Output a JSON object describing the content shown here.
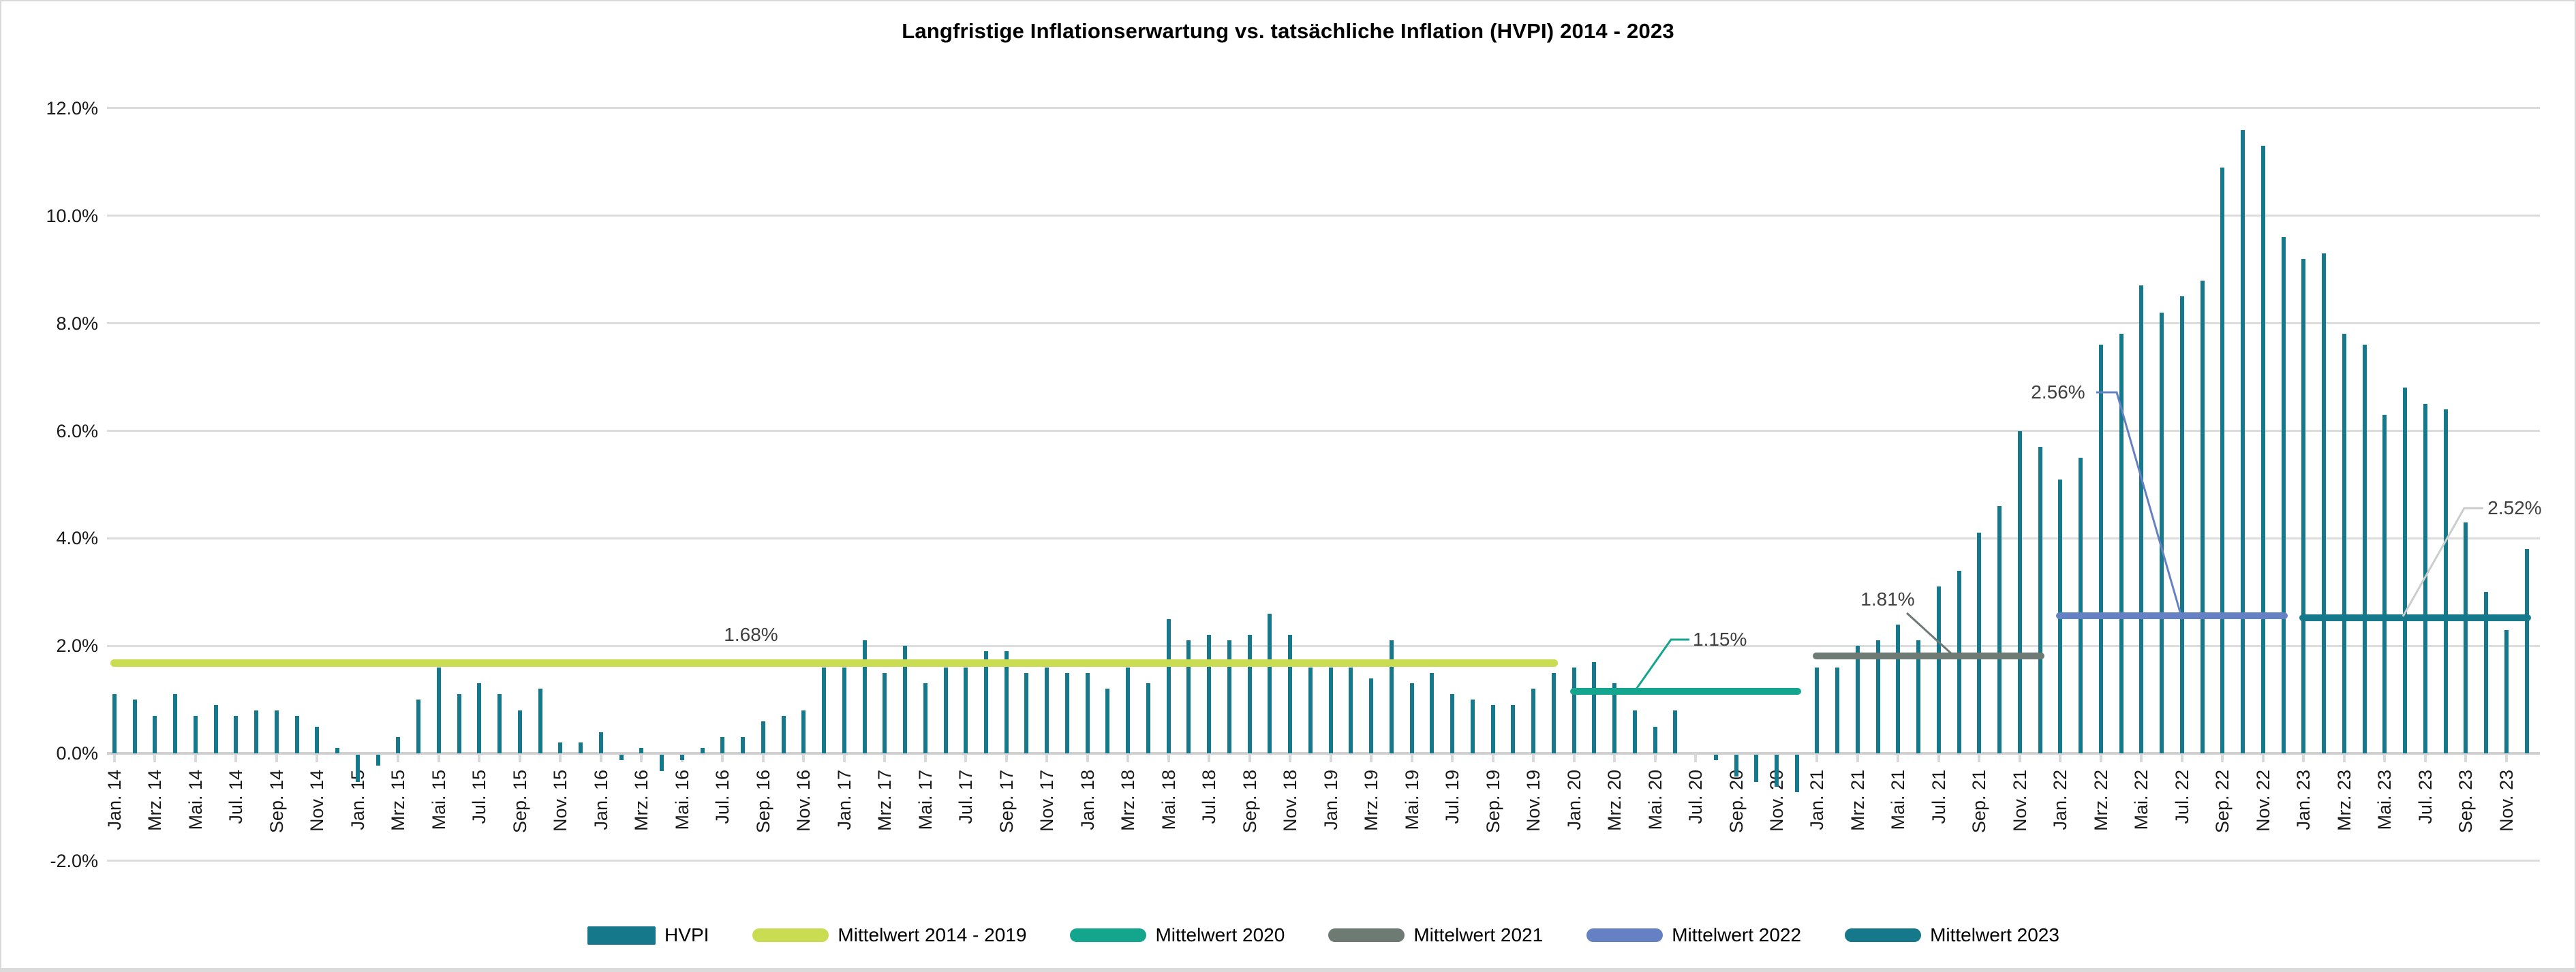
{
  "title": "Langfristige Inflationserwartung vs. tatsächliche Inflation (HVPI) 2014 - 2023",
  "colors": {
    "hvpi_bar": "#16798B",
    "mean_2014_2019": "#C9DC52",
    "mean_2020": "#14A58F",
    "mean_2021": "#6E7A74",
    "mean_2022": "#6680C4",
    "mean_2023": "#16798B",
    "gridline": "#DCDCDC",
    "axis_line": "#D0D0D0",
    "tick": "#D9D9D9",
    "axis_text": "#1A1A1A",
    "annotation_text": "#404040",
    "leader_2023": "#C9CDCB",
    "title_text": "#000000"
  },
  "y_axis": {
    "tick_labels": [
      "12.0%",
      "10.0%",
      "8.0%",
      "6.0%",
      "4.0%",
      "2.0%",
      "0.0%",
      "-2.0%"
    ],
    "tick_values": [
      12,
      10,
      8,
      6,
      4,
      2,
      0,
      -2
    ]
  },
  "x_axis": {
    "tick_labels": [
      "Jan. 14",
      "Mrz. 14",
      "Mai. 14",
      "Jul. 14",
      "Sep. 14",
      "Nov. 14",
      "Jan. 15",
      "Mrz. 15",
      "Mai. 15",
      "Jul. 15",
      "Sep. 15",
      "Nov. 15",
      "Jan. 16",
      "Mrz. 16",
      "Mai. 16",
      "Jul. 16",
      "Sep. 16",
      "Nov. 16",
      "Jan. 17",
      "Mrz. 17",
      "Mai. 17",
      "Jul. 17",
      "Sep. 17",
      "Nov. 17",
      "Jan. 18",
      "Mrz. 18",
      "Mai. 18",
      "Jul. 18",
      "Sep. 18",
      "Nov. 18",
      "Jan. 19",
      "Mrz. 19",
      "Mai. 19",
      "Jul. 19",
      "Sep. 19",
      "Nov. 19",
      "Jan. 20",
      "Mrz. 20",
      "Mai. 20",
      "Jul. 20",
      "Sep. 20",
      "Nov. 20",
      "Jan. 21",
      "Mrz. 21",
      "Mai. 21",
      "Jul. 21",
      "Sep. 21",
      "Nov. 21",
      "Jan. 22",
      "Mrz. 22",
      "Mai. 22",
      "Jul. 22",
      "Sep. 22",
      "Nov. 22",
      "Jan. 23",
      "Mrz. 23",
      "Mai. 23",
      "Jul. 23",
      "Sep. 23",
      "Nov. 23"
    ]
  },
  "chart_data": {
    "type": "bar",
    "title": "Langfristige Inflationserwartung vs. tatsächliche Inflation (HVPI) 2014 - 2023",
    "xlabel": "",
    "ylabel": "",
    "ylim": [
      -2,
      12
    ],
    "grid": true,
    "legend_position": "bottom",
    "categories": [
      "Jan. 14",
      "Feb. 14",
      "Mrz. 14",
      "Apr. 14",
      "Mai. 14",
      "Jun. 14",
      "Jul. 14",
      "Aug. 14",
      "Sep. 14",
      "Okt. 14",
      "Nov. 14",
      "Dez. 14",
      "Jan. 15",
      "Feb. 15",
      "Mrz. 15",
      "Apr. 15",
      "Mai. 15",
      "Jun. 15",
      "Jul. 15",
      "Aug. 15",
      "Sep. 15",
      "Okt. 15",
      "Nov. 15",
      "Dez. 15",
      "Jan. 16",
      "Feb. 16",
      "Mrz. 16",
      "Apr. 16",
      "Mai. 16",
      "Jun. 16",
      "Jul. 16",
      "Aug. 16",
      "Sep. 16",
      "Okt. 16",
      "Nov. 16",
      "Dez. 16",
      "Jan. 17",
      "Feb. 17",
      "Mrz. 17",
      "Apr. 17",
      "Mai. 17",
      "Jun. 17",
      "Jul. 17",
      "Aug. 17",
      "Sep. 17",
      "Okt. 17",
      "Nov. 17",
      "Dez. 17",
      "Jan. 18",
      "Feb. 18",
      "Mrz. 18",
      "Apr. 18",
      "Mai. 18",
      "Jun. 18",
      "Jul. 18",
      "Aug. 18",
      "Sep. 18",
      "Okt. 18",
      "Nov. 18",
      "Dez. 18",
      "Jan. 19",
      "Feb. 19",
      "Mrz. 19",
      "Apr. 19",
      "Mai. 19",
      "Jun. 19",
      "Jul. 19",
      "Aug. 19",
      "Sep. 19",
      "Okt. 19",
      "Nov. 19",
      "Dez. 19",
      "Jan. 20",
      "Feb. 20",
      "Mrz. 20",
      "Apr. 20",
      "Mai. 20",
      "Jun. 20",
      "Jul. 20",
      "Aug. 20",
      "Sep. 20",
      "Okt. 20",
      "Nov. 20",
      "Dez. 20",
      "Jan. 21",
      "Feb. 21",
      "Mrz. 21",
      "Apr. 21",
      "Mai. 21",
      "Jun. 21",
      "Jul. 21",
      "Aug. 21",
      "Sep. 21",
      "Okt. 21",
      "Nov. 21",
      "Dez. 21",
      "Jan. 22",
      "Feb. 22",
      "Mrz. 22",
      "Apr. 22",
      "Mai. 22",
      "Jun. 22",
      "Jul. 22",
      "Aug. 22",
      "Sep. 22",
      "Okt. 22",
      "Nov. 22",
      "Dez. 22",
      "Jan. 23",
      "Feb. 23",
      "Mrz. 23",
      "Apr. 23",
      "Mai. 23",
      "Jun. 23",
      "Jul. 23",
      "Aug. 23",
      "Sep. 23",
      "Okt. 23",
      "Nov. 23",
      "Dez. 23"
    ],
    "series": [
      {
        "name": "HVPI",
        "values": [
          1.1,
          1.0,
          0.7,
          1.1,
          0.7,
          0.9,
          0.7,
          0.8,
          0.8,
          0.7,
          0.5,
          0.1,
          -0.5,
          -0.2,
          0.3,
          1.0,
          1.6,
          1.1,
          1.3,
          1.1,
          0.8,
          1.2,
          0.2,
          0.2,
          0.4,
          -0.1,
          0.1,
          -0.3,
          -0.1,
          0.1,
          0.3,
          0.3,
          0.6,
          0.7,
          0.8,
          1.6,
          1.6,
          2.1,
          1.5,
          2.0,
          1.3,
          1.6,
          1.6,
          1.9,
          1.9,
          1.5,
          1.6,
          1.5,
          1.5,
          1.2,
          1.6,
          1.3,
          2.5,
          2.1,
          2.2,
          2.1,
          2.2,
          2.6,
          2.2,
          1.6,
          1.6,
          1.6,
          1.4,
          2.1,
          1.3,
          1.5,
          1.1,
          1.0,
          0.9,
          0.9,
          1.2,
          1.5,
          1.6,
          1.7,
          1.3,
          0.8,
          0.5,
          0.8,
          0.0,
          -0.1,
          -0.4,
          -0.5,
          -0.6,
          -0.7,
          1.6,
          1.6,
          2.0,
          2.1,
          2.4,
          2.1,
          3.1,
          3.4,
          4.1,
          4.6,
          6.0,
          5.7,
          5.1,
          5.5,
          7.6,
          7.8,
          8.7,
          8.2,
          8.5,
          8.8,
          10.9,
          11.6,
          11.3,
          9.6,
          9.2,
          9.3,
          7.8,
          7.6,
          6.3,
          6.8,
          6.5,
          6.4,
          4.3,
          3.0,
          2.3,
          3.8
        ]
      }
    ],
    "mean_lines": [
      {
        "name": "Mittelwert 2014 - 2019",
        "value": 1.68,
        "label": "1.68%",
        "from": "Jan. 14",
        "to": "Dez. 19",
        "color_key": "mean_2014_2019",
        "has_leader": false
      },
      {
        "name": "Mittelwert 2020",
        "value": 1.15,
        "label": "1.15%",
        "from": "Jan. 20",
        "to": "Dez. 20",
        "color_key": "mean_2020",
        "has_leader": true
      },
      {
        "name": "Mittelwert 2021",
        "value": 1.81,
        "label": "1.81%",
        "from": "Jan. 21",
        "to": "Dez. 21",
        "color_key": "mean_2021",
        "has_leader": true
      },
      {
        "name": "Mittelwert 2022",
        "value": 2.56,
        "label": "2.56%",
        "from": "Jan. 22",
        "to": "Dez. 22",
        "color_key": "mean_2022",
        "has_leader": true
      },
      {
        "name": "Mittelwert 2023",
        "value": 2.52,
        "label": "2.52%",
        "from": "Jan. 23",
        "to": "Dez. 23",
        "color_key": "leader_2023_target",
        "has_leader": true
      }
    ]
  },
  "legend": {
    "items": [
      {
        "label": "HVPI",
        "marker": "rect",
        "color_key": "hvpi_bar"
      },
      {
        "label": "Mittelwert 2014 - 2019",
        "marker": "line",
        "color_key": "mean_2014_2019"
      },
      {
        "label": "Mittelwert 2020",
        "marker": "line",
        "color_key": "mean_2020"
      },
      {
        "label": "Mittelwert 2021",
        "marker": "line",
        "color_key": "mean_2021"
      },
      {
        "label": "Mittelwert 2022",
        "marker": "line",
        "color_key": "mean_2022"
      },
      {
        "label": "Mittelwert 2023",
        "marker": "line",
        "color_key": "mean_2023"
      }
    ]
  }
}
